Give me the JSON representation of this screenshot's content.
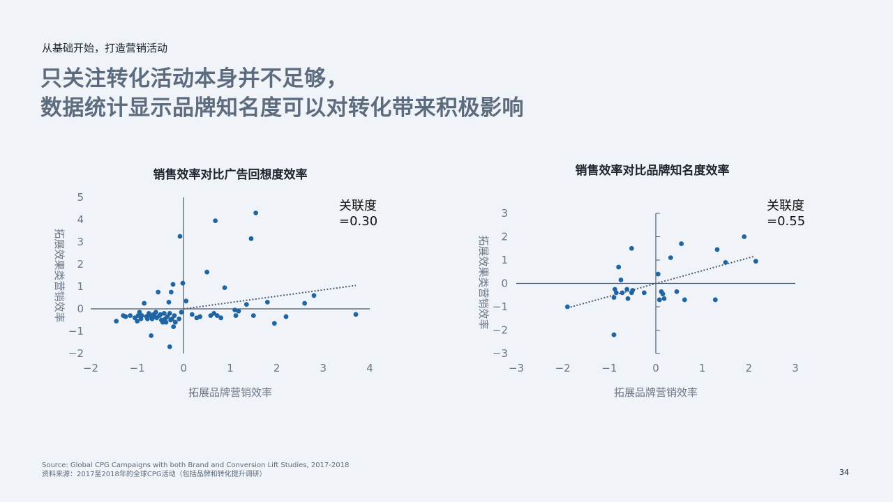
{
  "header": {
    "eyebrow": "从基础开始，打造营销活动",
    "headline_line1": "只关注转化活动本身并不足够，",
    "headline_line2": "数据统计显示品牌知名度可以对转化带来积极影响"
  },
  "chart_data": [
    {
      "type": "scatter",
      "title": "销售效率对比广告回想度效率",
      "xlabel": "拓展品牌营销效率",
      "ylabel": "拓展效果类营销效率",
      "xlim": [
        -2,
        4
      ],
      "ylim": [
        -2,
        5
      ],
      "xticks": [
        "−2",
        "−1",
        "0",
        "1",
        "2",
        "3",
        "4"
      ],
      "yticks": [
        "−2",
        "−1",
        "0",
        "1",
        "2",
        "3",
        "4",
        "5"
      ],
      "annotation_line1": "关联度",
      "annotation_line2": "=0.30",
      "trendline": [
        [
          0,
          0
        ],
        [
          3.7,
          1.05
        ]
      ],
      "color": "#1f65a3",
      "points": [
        [
          -1.45,
          -0.55
        ],
        [
          -1.3,
          -0.3
        ],
        [
          -1.25,
          -0.35
        ],
        [
          -1.15,
          -0.3
        ],
        [
          -1.05,
          -0.4
        ],
        [
          -1.0,
          -0.55
        ],
        [
          -0.98,
          -0.3
        ],
        [
          -0.95,
          -0.15
        ],
        [
          -0.92,
          -0.45
        ],
        [
          -0.9,
          -0.3
        ],
        [
          -0.85,
          0.25
        ],
        [
          -0.8,
          -0.35
        ],
        [
          -0.78,
          -0.45
        ],
        [
          -0.75,
          -0.2
        ],
        [
          -0.72,
          -0.3
        ],
        [
          -0.7,
          -1.2
        ],
        [
          -0.68,
          -0.45
        ],
        [
          -0.65,
          -0.25
        ],
        [
          -0.62,
          -0.35
        ],
        [
          -0.6,
          -0.15
        ],
        [
          -0.58,
          -0.4
        ],
        [
          -0.55,
          0.75
        ],
        [
          -0.52,
          -0.3
        ],
        [
          -0.5,
          -0.25
        ],
        [
          -0.48,
          -0.5
        ],
        [
          -0.45,
          -0.6
        ],
        [
          -0.42,
          -0.2
        ],
        [
          -0.4,
          -0.45
        ],
        [
          -0.38,
          -0.6
        ],
        [
          -0.35,
          -0.35
        ],
        [
          -0.32,
          0.3
        ],
        [
          -0.3,
          -0.2
        ],
        [
          -0.3,
          -1.7
        ],
        [
          -0.28,
          -0.5
        ],
        [
          -0.27,
          0.75
        ],
        [
          -0.25,
          -0.45
        ],
        [
          -0.23,
          1.1
        ],
        [
          -0.22,
          -0.8
        ],
        [
          -0.2,
          -0.3
        ],
        [
          -0.18,
          -0.6
        ],
        [
          -0.1,
          -0.45
        ],
        [
          -0.08,
          3.25
        ],
        [
          -0.05,
          -0.15
        ],
        [
          -0.02,
          1.15
        ],
        [
          0.05,
          0.35
        ],
        [
          0.18,
          -0.25
        ],
        [
          0.28,
          -0.4
        ],
        [
          0.35,
          -0.35
        ],
        [
          0.5,
          1.65
        ],
        [
          0.58,
          -0.3
        ],
        [
          0.65,
          -0.2
        ],
        [
          0.68,
          3.95
        ],
        [
          0.72,
          -0.3
        ],
        [
          0.8,
          -0.4
        ],
        [
          0.88,
          0.95
        ],
        [
          1.1,
          -0.05
        ],
        [
          1.12,
          -0.3
        ],
        [
          1.18,
          -0.1
        ],
        [
          1.35,
          0.2
        ],
        [
          1.45,
          3.15
        ],
        [
          1.5,
          -0.3
        ],
        [
          1.55,
          4.3
        ],
        [
          1.8,
          0.3
        ],
        [
          1.95,
          -0.65
        ],
        [
          2.2,
          -0.35
        ],
        [
          2.6,
          0.25
        ],
        [
          2.8,
          0.6
        ],
        [
          3.7,
          -0.25
        ]
      ]
    },
    {
      "type": "scatter",
      "title": "销售效率对比品牌知名度效率",
      "xlabel": "拓展品牌营销效率",
      "ylabel": "拓展效果类营销效率",
      "xlim": [
        -3,
        3
      ],
      "ylim": [
        -3,
        3
      ],
      "xticks": [
        "−3",
        "−2",
        "−1",
        "0",
        "1",
        "2",
        "3"
      ],
      "yticks": [
        "−3",
        "−2",
        "−1",
        "0",
        "1",
        "2",
        "3"
      ],
      "annotation_line1": "关联度",
      "annotation_line2": "=0.55",
      "trendline": [
        [
          -1.9,
          -1.05
        ],
        [
          2.1,
          1.15
        ]
      ],
      "color": "#1f65a3",
      "points": [
        [
          -1.9,
          -1.0
        ],
        [
          -0.9,
          -0.6
        ],
        [
          -0.88,
          -0.25
        ],
        [
          -0.85,
          -0.4
        ],
        [
          -0.8,
          0.7
        ],
        [
          -0.75,
          0.15
        ],
        [
          -0.72,
          -0.4
        ],
        [
          -0.62,
          -0.25
        ],
        [
          -0.6,
          -0.65
        ],
        [
          -0.52,
          -0.4
        ],
        [
          -0.5,
          -0.3
        ],
        [
          -0.52,
          1.5
        ],
        [
          -0.9,
          -2.2
        ],
        [
          -0.25,
          -0.4
        ],
        [
          0.05,
          0.4
        ],
        [
          0.08,
          -0.7
        ],
        [
          0.12,
          -0.35
        ],
        [
          0.15,
          -0.45
        ],
        [
          0.18,
          -0.65
        ],
        [
          0.32,
          1.1
        ],
        [
          0.45,
          -0.35
        ],
        [
          0.55,
          1.7
        ],
        [
          0.62,
          -0.7
        ],
        [
          1.28,
          -0.7
        ],
        [
          1.32,
          1.45
        ],
        [
          1.5,
          0.9
        ],
        [
          1.9,
          2.0
        ],
        [
          2.15,
          0.95
        ]
      ]
    }
  ],
  "footer": {
    "source_en": "Source: Global CPG Campaigns with both Brand and Conversion Lift Studies, 2017-2018",
    "source_cn": "资料来源：2017至2018年的全球CPG活动（包括品牌和转化提升调研）"
  },
  "page_number": "34"
}
